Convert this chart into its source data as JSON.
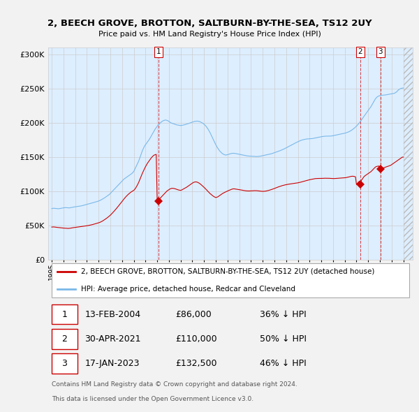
{
  "title": "2, BEECH GROVE, BROTTON, SALTBURN-BY-THE-SEA, TS12 2UY",
  "subtitle": "Price paid vs. HM Land Registry's House Price Index (HPI)",
  "ylabel_ticks": [
    "£0",
    "£50K",
    "£100K",
    "£150K",
    "£200K",
    "£250K",
    "£300K"
  ],
  "ytick_values": [
    0,
    50000,
    100000,
    150000,
    200000,
    250000,
    300000
  ],
  "ylim": [
    0,
    310000
  ],
  "hpi_color": "#7ab8e8",
  "sale_color": "#cc0000",
  "vline_color": "#cc0000",
  "legend_label_sale": "2, BEECH GROVE, BROTTON, SALTBURN-BY-THE-SEA, TS12 2UY (detached house)",
  "legend_label_hpi": "HPI: Average price, detached house, Redcar and Cleveland",
  "transactions": [
    {
      "label": "1",
      "date_num": 2004.12,
      "price": 86000,
      "desc": "13-FEB-2004",
      "price_str": "£86,000",
      "pct": "36% ↓ HPI"
    },
    {
      "label": "2",
      "date_num": 2021.33,
      "price": 110000,
      "desc": "30-APR-2021",
      "price_str": "£110,000",
      "pct": "50% ↓ HPI"
    },
    {
      "label": "3",
      "date_num": 2023.05,
      "price": 132500,
      "desc": "17-JAN-2023",
      "price_str": "£132,500",
      "pct": "46% ↓ HPI"
    }
  ],
  "footer1": "Contains HM Land Registry data © Crown copyright and database right 2024.",
  "footer2": "This data is licensed under the Open Government Licence v3.0.",
  "background_color": "#f2f2f2",
  "plot_bg_color": "#ddeeff",
  "hpi_data_x": [
    1995.0,
    1995.083,
    1995.167,
    1995.25,
    1995.333,
    1995.417,
    1995.5,
    1995.583,
    1995.667,
    1995.75,
    1995.833,
    1995.917,
    1996.0,
    1996.083,
    1996.167,
    1996.25,
    1996.333,
    1996.417,
    1996.5,
    1996.583,
    1996.667,
    1996.75,
    1996.833,
    1996.917,
    1997.0,
    1997.083,
    1997.167,
    1997.25,
    1997.333,
    1997.417,
    1997.5,
    1997.583,
    1997.667,
    1997.75,
    1997.833,
    1997.917,
    1998.0,
    1998.083,
    1998.167,
    1998.25,
    1998.333,
    1998.417,
    1998.5,
    1998.583,
    1998.667,
    1998.75,
    1998.833,
    1998.917,
    1999.0,
    1999.083,
    1999.167,
    1999.25,
    1999.333,
    1999.417,
    1999.5,
    1999.583,
    1999.667,
    1999.75,
    1999.833,
    1999.917,
    2000.0,
    2000.083,
    2000.167,
    2000.25,
    2000.333,
    2000.417,
    2000.5,
    2000.583,
    2000.667,
    2000.75,
    2000.833,
    2000.917,
    2001.0,
    2001.083,
    2001.167,
    2001.25,
    2001.333,
    2001.417,
    2001.5,
    2001.583,
    2001.667,
    2001.75,
    2001.833,
    2001.917,
    2002.0,
    2002.083,
    2002.167,
    2002.25,
    2002.333,
    2002.417,
    2002.5,
    2002.583,
    2002.667,
    2002.75,
    2002.833,
    2002.917,
    2003.0,
    2003.083,
    2003.167,
    2003.25,
    2003.333,
    2003.417,
    2003.5,
    2003.583,
    2003.667,
    2003.75,
    2003.833,
    2003.917,
    2004.0,
    2004.083,
    2004.167,
    2004.25,
    2004.333,
    2004.417,
    2004.5,
    2004.583,
    2004.667,
    2004.75,
    2004.833,
    2004.917,
    2005.0,
    2005.083,
    2005.167,
    2005.25,
    2005.333,
    2005.417,
    2005.5,
    2005.583,
    2005.667,
    2005.75,
    2005.833,
    2005.917,
    2006.0,
    2006.083,
    2006.167,
    2006.25,
    2006.333,
    2006.417,
    2006.5,
    2006.583,
    2006.667,
    2006.75,
    2006.833,
    2006.917,
    2007.0,
    2007.083,
    2007.167,
    2007.25,
    2007.333,
    2007.417,
    2007.5,
    2007.583,
    2007.667,
    2007.75,
    2007.833,
    2007.917,
    2008.0,
    2008.083,
    2008.167,
    2008.25,
    2008.333,
    2008.417,
    2008.5,
    2008.583,
    2008.667,
    2008.75,
    2008.833,
    2008.917,
    2009.0,
    2009.083,
    2009.167,
    2009.25,
    2009.333,
    2009.417,
    2009.5,
    2009.583,
    2009.667,
    2009.75,
    2009.833,
    2009.917,
    2010.0,
    2010.083,
    2010.167,
    2010.25,
    2010.333,
    2010.417,
    2010.5,
    2010.583,
    2010.667,
    2010.75,
    2010.833,
    2010.917,
    2011.0,
    2011.083,
    2011.167,
    2011.25,
    2011.333,
    2011.417,
    2011.5,
    2011.583,
    2011.667,
    2011.75,
    2011.833,
    2011.917,
    2012.0,
    2012.083,
    2012.167,
    2012.25,
    2012.333,
    2012.417,
    2012.5,
    2012.583,
    2012.667,
    2012.75,
    2012.833,
    2012.917,
    2013.0,
    2013.083,
    2013.167,
    2013.25,
    2013.333,
    2013.417,
    2013.5,
    2013.583,
    2013.667,
    2013.75,
    2013.833,
    2013.917,
    2014.0,
    2014.083,
    2014.167,
    2014.25,
    2014.333,
    2014.417,
    2014.5,
    2014.583,
    2014.667,
    2014.75,
    2014.833,
    2014.917,
    2015.0,
    2015.083,
    2015.167,
    2015.25,
    2015.333,
    2015.417,
    2015.5,
    2015.583,
    2015.667,
    2015.75,
    2015.833,
    2015.917,
    2016.0,
    2016.083,
    2016.167,
    2016.25,
    2016.333,
    2016.417,
    2016.5,
    2016.583,
    2016.667,
    2016.75,
    2016.833,
    2016.917,
    2017.0,
    2017.083,
    2017.167,
    2017.25,
    2017.333,
    2017.417,
    2017.5,
    2017.583,
    2017.667,
    2017.75,
    2017.833,
    2017.917,
    2018.0,
    2018.083,
    2018.167,
    2018.25,
    2018.333,
    2018.417,
    2018.5,
    2018.583,
    2018.667,
    2018.75,
    2018.833,
    2018.917,
    2019.0,
    2019.083,
    2019.167,
    2019.25,
    2019.333,
    2019.417,
    2019.5,
    2019.583,
    2019.667,
    2019.75,
    2019.833,
    2019.917,
    2020.0,
    2020.083,
    2020.167,
    2020.25,
    2020.333,
    2020.417,
    2020.5,
    2020.583,
    2020.667,
    2020.75,
    2020.833,
    2020.917,
    2021.0,
    2021.083,
    2021.167,
    2021.25,
    2021.333,
    2021.417,
    2021.5,
    2021.583,
    2021.667,
    2021.75,
    2021.833,
    2021.917,
    2022.0,
    2022.083,
    2022.167,
    2022.25,
    2022.333,
    2022.417,
    2022.5,
    2022.583,
    2022.667,
    2022.75,
    2022.833,
    2022.917,
    2023.0,
    2023.083,
    2023.167,
    2023.25,
    2023.333,
    2023.417,
    2023.5,
    2023.583,
    2023.667,
    2023.75,
    2023.833,
    2023.917,
    2024.0,
    2024.083,
    2024.167,
    2024.25,
    2024.333,
    2024.417,
    2024.5,
    2024.583,
    2024.667,
    2024.75,
    2024.833,
    2024.917,
    2025.0
  ],
  "hpi_data_y": [
    75000,
    75200,
    75400,
    75300,
    75100,
    75000,
    74800,
    74700,
    74900,
    75200,
    75500,
    75800,
    76000,
    76200,
    76400,
    76300,
    76100,
    76000,
    75900,
    76200,
    76500,
    76800,
    77100,
    77300,
    77500,
    77700,
    77900,
    78100,
    78300,
    78500,
    78800,
    79100,
    79500,
    79900,
    80300,
    80700,
    81000,
    81400,
    81800,
    82200,
    82600,
    83000,
    83400,
    83800,
    84200,
    84600,
    85000,
    85500,
    86000,
    86500,
    87200,
    88000,
    88800,
    89600,
    90500,
    91500,
    92500,
    93500,
    94500,
    95500,
    97000,
    98500,
    100000,
    101500,
    103000,
    104500,
    106000,
    107500,
    109000,
    110500,
    112000,
    113500,
    115000,
    116500,
    118000,
    119000,
    120000,
    121000,
    122000,
    123000,
    124000,
    125000,
    126000,
    127500,
    129000,
    132000,
    135000,
    138000,
    141000,
    144000,
    148000,
    152000,
    156000,
    160000,
    163000,
    166000,
    168000,
    170000,
    172000,
    174000,
    176000,
    178500,
    181000,
    183500,
    186000,
    188500,
    191000,
    193000,
    195000,
    196500,
    198000,
    199500,
    201000,
    202000,
    203000,
    203500,
    204000,
    204000,
    203500,
    203000,
    202000,
    201000,
    200000,
    199500,
    199000,
    198500,
    198000,
    197500,
    197000,
    196800,
    196500,
    196300,
    196000,
    196200,
    196500,
    196800,
    197200,
    197600,
    198000,
    198500,
    199000,
    199500,
    200000,
    200500,
    201000,
    201500,
    202000,
    202200,
    202400,
    202500,
    202300,
    202000,
    201500,
    200800,
    200000,
    199000,
    198000,
    196500,
    195000,
    193000,
    191000,
    188500,
    186000,
    183000,
    180000,
    177000,
    174000,
    171000,
    168000,
    165500,
    163000,
    161000,
    159000,
    157500,
    156000,
    155000,
    154000,
    153500,
    153000,
    153200,
    153500,
    154000,
    154500,
    155000,
    155300,
    155500,
    155600,
    155500,
    155300,
    155000,
    154700,
    154400,
    154000,
    153800,
    153500,
    153200,
    152900,
    152600,
    152300,
    152000,
    151800,
    151600,
    151500,
    151400,
    151300,
    151200,
    151100,
    151000,
    150900,
    150800,
    150800,
    150900,
    151000,
    151200,
    151500,
    151800,
    152000,
    152300,
    152600,
    152900,
    153200,
    153500,
    153800,
    154100,
    154500,
    154900,
    155400,
    155900,
    156500,
    157000,
    157500,
    158000,
    158500,
    159000,
    159500,
    160100,
    160700,
    161300,
    162000,
    162700,
    163500,
    164200,
    165000,
    165700,
    166500,
    167200,
    168000,
    168700,
    169500,
    170200,
    171000,
    171700,
    172500,
    173100,
    173700,
    174300,
    174800,
    175200,
    175600,
    175900,
    176200,
    176400,
    176500,
    176600,
    176700,
    176800,
    176900,
    177100,
    177400,
    177700,
    178000,
    178300,
    178600,
    178900,
    179200,
    179500,
    179800,
    180000,
    180200,
    180400,
    180500,
    180600,
    180600,
    180600,
    180600,
    180600,
    180700,
    180900,
    181200,
    181500,
    181800,
    182100,
    182400,
    182700,
    183000,
    183300,
    183600,
    183900,
    184200,
    184500,
    184800,
    185200,
    185700,
    186200,
    186800,
    187500,
    188300,
    189200,
    190200,
    191300,
    192500,
    193800,
    195200,
    196700,
    198300,
    200000,
    202000,
    204000,
    206000,
    208000,
    210000,
    212000,
    214000,
    216000,
    218000,
    220000,
    222000,
    224000,
    226500,
    229000,
    231500,
    234000,
    236000,
    237500,
    238500,
    239200,
    239700,
    240000,
    240200,
    240300,
    240400,
    240500,
    240700,
    241000,
    241300,
    241600,
    241800,
    242000,
    242200,
    242500,
    242800,
    243200,
    244000,
    245000,
    246500,
    248000,
    249000,
    249800,
    250300,
    250600,
    250800
  ],
  "sale_data_x": [
    1995.0,
    1995.083,
    1995.167,
    1995.25,
    1995.333,
    1995.417,
    1995.5,
    1995.583,
    1995.667,
    1995.75,
    1995.833,
    1995.917,
    1996.0,
    1996.083,
    1996.167,
    1996.25,
    1996.333,
    1996.417,
    1996.5,
    1996.583,
    1996.667,
    1996.75,
    1996.833,
    1996.917,
    1997.0,
    1997.083,
    1997.167,
    1997.25,
    1997.333,
    1997.417,
    1997.5,
    1997.583,
    1997.667,
    1997.75,
    1997.833,
    1997.917,
    1998.0,
    1998.083,
    1998.167,
    1998.25,
    1998.333,
    1998.417,
    1998.5,
    1998.583,
    1998.667,
    1998.75,
    1998.833,
    1998.917,
    1999.0,
    1999.083,
    1999.167,
    1999.25,
    1999.333,
    1999.417,
    1999.5,
    1999.583,
    1999.667,
    1999.75,
    1999.833,
    1999.917,
    2000.0,
    2000.083,
    2000.167,
    2000.25,
    2000.333,
    2000.417,
    2000.5,
    2000.583,
    2000.667,
    2000.75,
    2000.833,
    2000.917,
    2001.0,
    2001.083,
    2001.167,
    2001.25,
    2001.333,
    2001.417,
    2001.5,
    2001.583,
    2001.667,
    2001.75,
    2001.833,
    2001.917,
    2002.0,
    2002.083,
    2002.167,
    2002.25,
    2002.333,
    2002.417,
    2002.5,
    2002.583,
    2002.667,
    2002.75,
    2002.833,
    2002.917,
    2003.0,
    2003.083,
    2003.167,
    2003.25,
    2003.333,
    2003.417,
    2003.5,
    2003.583,
    2003.667,
    2003.75,
    2003.833,
    2003.917,
    2004.0,
    2004.083,
    2004.167,
    2004.25,
    2004.333,
    2004.417,
    2004.5,
    2004.583,
    2004.667,
    2004.75,
    2004.833,
    2004.917,
    2005.0,
    2005.083,
    2005.167,
    2005.25,
    2005.333,
    2005.417,
    2005.5,
    2005.583,
    2005.667,
    2005.75,
    2005.833,
    2005.917,
    2006.0,
    2006.083,
    2006.167,
    2006.25,
    2006.333,
    2006.417,
    2006.5,
    2006.583,
    2006.667,
    2006.75,
    2006.833,
    2006.917,
    2007.0,
    2007.083,
    2007.167,
    2007.25,
    2007.333,
    2007.417,
    2007.5,
    2007.583,
    2007.667,
    2007.75,
    2007.833,
    2007.917,
    2008.0,
    2008.083,
    2008.167,
    2008.25,
    2008.333,
    2008.417,
    2008.5,
    2008.583,
    2008.667,
    2008.75,
    2008.833,
    2008.917,
    2009.0,
    2009.083,
    2009.167,
    2009.25,
    2009.333,
    2009.417,
    2009.5,
    2009.583,
    2009.667,
    2009.75,
    2009.833,
    2009.917,
    2010.0,
    2010.083,
    2010.167,
    2010.25,
    2010.333,
    2010.417,
    2010.5,
    2010.583,
    2010.667,
    2010.75,
    2010.833,
    2010.917,
    2011.0,
    2011.083,
    2011.167,
    2011.25,
    2011.333,
    2011.417,
    2011.5,
    2011.583,
    2011.667,
    2011.75,
    2011.833,
    2011.917,
    2012.0,
    2012.083,
    2012.167,
    2012.25,
    2012.333,
    2012.417,
    2012.5,
    2012.583,
    2012.667,
    2012.75,
    2012.833,
    2012.917,
    2013.0,
    2013.083,
    2013.167,
    2013.25,
    2013.333,
    2013.417,
    2013.5,
    2013.583,
    2013.667,
    2013.75,
    2013.833,
    2013.917,
    2014.0,
    2014.083,
    2014.167,
    2014.25,
    2014.333,
    2014.417,
    2014.5,
    2014.583,
    2014.667,
    2014.75,
    2014.833,
    2014.917,
    2015.0,
    2015.083,
    2015.167,
    2015.25,
    2015.333,
    2015.417,
    2015.5,
    2015.583,
    2015.667,
    2015.75,
    2015.833,
    2015.917,
    2016.0,
    2016.083,
    2016.167,
    2016.25,
    2016.333,
    2016.417,
    2016.5,
    2016.583,
    2016.667,
    2016.75,
    2016.833,
    2016.917,
    2017.0,
    2017.083,
    2017.167,
    2017.25,
    2017.333,
    2017.417,
    2017.5,
    2017.583,
    2017.667,
    2017.75,
    2017.833,
    2017.917,
    2018.0,
    2018.083,
    2018.167,
    2018.25,
    2018.333,
    2018.417,
    2018.5,
    2018.583,
    2018.667,
    2018.75,
    2018.833,
    2018.917,
    2019.0,
    2019.083,
    2019.167,
    2019.25,
    2019.333,
    2019.417,
    2019.5,
    2019.583,
    2019.667,
    2019.75,
    2019.833,
    2019.917,
    2020.0,
    2020.083,
    2020.167,
    2020.25,
    2020.333,
    2020.417,
    2020.5,
    2020.583,
    2020.667,
    2020.75,
    2020.833,
    2020.917,
    2021.0,
    2021.083,
    2021.167,
    2021.25,
    2021.333,
    2021.417,
    2021.5,
    2021.583,
    2021.667,
    2021.75,
    2021.833,
    2021.917,
    2022.0,
    2022.083,
    2022.167,
    2022.25,
    2022.333,
    2022.417,
    2022.5,
    2022.583,
    2022.667,
    2022.75,
    2022.833,
    2022.917,
    2023.0,
    2023.083,
    2023.167,
    2023.25,
    2023.333,
    2023.417,
    2023.5,
    2023.583,
    2023.667,
    2023.75,
    2023.833,
    2023.917,
    2024.0,
    2024.083,
    2024.167,
    2024.25,
    2024.333,
    2024.417,
    2024.5,
    2024.583,
    2024.667,
    2024.75,
    2024.833,
    2024.917,
    2025.0
  ],
  "sale_data_y": [
    48000,
    48100,
    48200,
    48000,
    47800,
    47700,
    47500,
    47300,
    47200,
    47000,
    46800,
    46700,
    46500,
    46400,
    46300,
    46200,
    46100,
    46000,
    46100,
    46300,
    46600,
    46900,
    47100,
    47300,
    47500,
    47700,
    47900,
    48100,
    48300,
    48500,
    48700,
    48900,
    49100,
    49300,
    49500,
    49700,
    49900,
    50100,
    50400,
    50700,
    51000,
    51300,
    51700,
    52100,
    52500,
    52900,
    53300,
    53700,
    54200,
    54700,
    55300,
    56000,
    56800,
    57700,
    58600,
    59600,
    60600,
    61700,
    62800,
    64000,
    65300,
    66700,
    68200,
    69700,
    71300,
    72900,
    74600,
    76300,
    78100,
    79900,
    81700,
    83500,
    85400,
    87200,
    89000,
    90700,
    92300,
    93800,
    95200,
    96500,
    97700,
    98800,
    99800,
    100700,
    101500,
    103000,
    105000,
    107500,
    110000,
    113000,
    116500,
    120000,
    123500,
    127000,
    130000,
    133000,
    136000,
    138500,
    141000,
    143000,
    145000,
    147000,
    149000,
    150500,
    152000,
    153000,
    153500,
    154000,
    86000,
    87000,
    88500,
    90000,
    91500,
    93000,
    94500,
    96000,
    97500,
    99000,
    100500,
    101500,
    102500,
    103500,
    104000,
    104500,
    104500,
    104300,
    104000,
    103500,
    103000,
    102500,
    102000,
    101700,
    101500,
    102000,
    102800,
    103500,
    104300,
    105200,
    106000,
    107000,
    108000,
    109000,
    110000,
    111000,
    112000,
    113000,
    113500,
    113800,
    113800,
    113500,
    112800,
    112000,
    111000,
    109800,
    108500,
    107200,
    106000,
    104500,
    103000,
    101500,
    100000,
    98500,
    97000,
    95800,
    94500,
    93500,
    92500,
    91700,
    91000,
    91500,
    92000,
    93000,
    94000,
    95000,
    96000,
    97000,
    97800,
    98500,
    99200,
    99800,
    100500,
    101200,
    101800,
    102500,
    103000,
    103500,
    103700,
    103700,
    103500,
    103300,
    103000,
    102700,
    102500,
    102300,
    102000,
    101800,
    101500,
    101200,
    101000,
    100800,
    100700,
    100600,
    100600,
    100700,
    100800,
    100900,
    101000,
    101100,
    101100,
    101100,
    101000,
    100900,
    100700,
    100500,
    100300,
    100100,
    100000,
    100100,
    100200,
    100400,
    100700,
    101000,
    101400,
    101800,
    102200,
    102700,
    103200,
    103700,
    104300,
    104800,
    105400,
    105900,
    106500,
    107000,
    107500,
    108000,
    108400,
    108800,
    109200,
    109500,
    109800,
    110100,
    110400,
    110600,
    110800,
    111000,
    111200,
    111400,
    111600,
    111800,
    112000,
    112200,
    112500,
    112800,
    113100,
    113500,
    113900,
    114200,
    114600,
    115000,
    115400,
    115800,
    116200,
    116600,
    117000,
    117300,
    117700,
    118000,
    118300,
    118500,
    118700,
    118800,
    118900,
    118900,
    118900,
    118900,
    118900,
    119000,
    119100,
    119100,
    119200,
    119200,
    119200,
    119200,
    119100,
    119000,
    118900,
    118800,
    118700,
    118700,
    118800,
    118900,
    119000,
    119100,
    119200,
    119300,
    119400,
    119500,
    119600,
    119700,
    119800,
    120000,
    120300,
    120600,
    121000,
    121400,
    121700,
    122000,
    122100,
    122000,
    121700,
    121200,
    110000,
    112000,
    113500,
    114800,
    110000,
    116000,
    118000,
    120000,
    122000,
    123000,
    124000,
    125000,
    126000,
    127000,
    128000,
    129000,
    130500,
    132000,
    133500,
    135000,
    136000,
    136500,
    136800,
    137000,
    132500,
    133000,
    133500,
    134000,
    134500,
    135000,
    135500,
    136000,
    136500,
    137000,
    137500,
    138000,
    139000,
    140000,
    141000,
    142000,
    143000,
    144000,
    145000,
    146000,
    147000,
    148000,
    149000,
    150000,
    150000
  ]
}
